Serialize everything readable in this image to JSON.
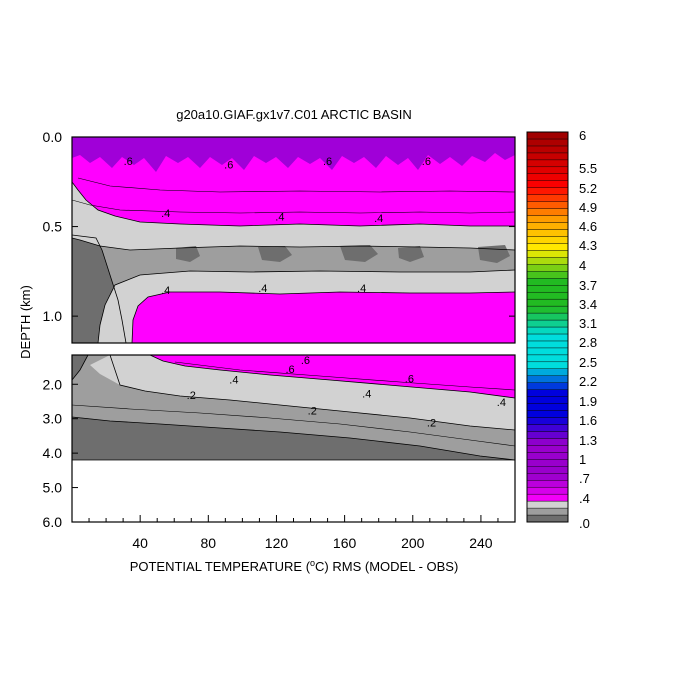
{
  "chart_data": {
    "type": "contour",
    "title": "g20a10.GIAF.gx1v7.C01 ARCTIC BASIN",
    "xlabel_prefix": "POTENTIAL TEMPERATURE (",
    "xlabel_deg": "o",
    "xlabel_suffix": "C) RMS (MODEL - OBS)",
    "ylabel": "DEPTH (km)",
    "xlim": [
      0,
      260
    ],
    "x_ticks": [
      "40",
      "80",
      "120",
      "160",
      "200",
      "240"
    ],
    "x_tick_values": [
      40,
      80,
      120,
      160,
      200,
      240
    ],
    "upper_panel": {
      "ylim": [
        0,
        1.15
      ],
      "y_ticks": [
        "0.0",
        "0.5",
        "1.0"
      ],
      "y_tick_values": [
        0.0,
        0.5,
        1.0
      ]
    },
    "lower_panel": {
      "ylim": [
        1.15,
        6.0
      ],
      "y_ticks": [
        "2.0",
        "3.0",
        "4.0",
        "5.0",
        "6.0"
      ],
      "y_tick_values": [
        2.0,
        3.0,
        4.0,
        5.0,
        6.0
      ],
      "data_bottom_depth": 4.2
    },
    "colorbar": {
      "labels": [
        "6",
        "5.5",
        "5.2",
        "4.9",
        "4.6",
        "4.3",
        "4",
        "3.7",
        "3.4",
        "3.1",
        "2.8",
        "2.5",
        "2.2",
        "1.9",
        "1.6",
        "1.3",
        "1",
        ".7",
        ".4",
        ".0"
      ],
      "colors": {
        "gray_dark": "#6e6e6e",
        "gray_mid": "#9e9e9e",
        "gray_light": "#d2d2d2",
        "magenta": "#ff00ff",
        "purple": "#9900cc",
        "blue": "#0000dd",
        "cyan": "#00dddd",
        "green": "#22bb22",
        "yellow": "#ffee00",
        "orange": "#ff9900",
        "red": "#ff0000",
        "dark_red": "#990000"
      }
    },
    "contour_labels": {
      "upper": [
        {
          "text": ".6",
          "x": 33,
          "y": 0.15
        },
        {
          "text": ".6",
          "x": 92,
          "y": 0.17
        },
        {
          "text": ".6",
          "x": 150,
          "y": 0.15
        },
        {
          "text": ".6",
          "x": 208,
          "y": 0.15
        },
        {
          "text": ".4",
          "x": 55,
          "y": 0.44
        },
        {
          "text": ".4",
          "x": 122,
          "y": 0.46
        },
        {
          "text": ".4",
          "x": 180,
          "y": 0.47
        },
        {
          "text": ".4",
          "x": 55,
          "y": 0.87
        },
        {
          "text": ".4",
          "x": 112,
          "y": 0.86
        },
        {
          "text": ".4",
          "x": 170,
          "y": 0.86
        }
      ],
      "lower": [
        {
          "text": ".6",
          "x": 137,
          "y": 1.38
        },
        {
          "text": ".6",
          "x": 128,
          "y": 1.65
        },
        {
          "text": ".6",
          "x": 198,
          "y": 1.92
        },
        {
          "text": ".4",
          "x": 95,
          "y": 1.95
        },
        {
          "text": ".4",
          "x": 173,
          "y": 2.35
        },
        {
          "text": ".4",
          "x": 252,
          "y": 2.6
        },
        {
          "text": ".2",
          "x": 70,
          "y": 2.4
        },
        {
          "text": ".2",
          "x": 141,
          "y": 2.85
        },
        {
          "text": ".2",
          "x": 211,
          "y": 3.2
        }
      ]
    }
  }
}
